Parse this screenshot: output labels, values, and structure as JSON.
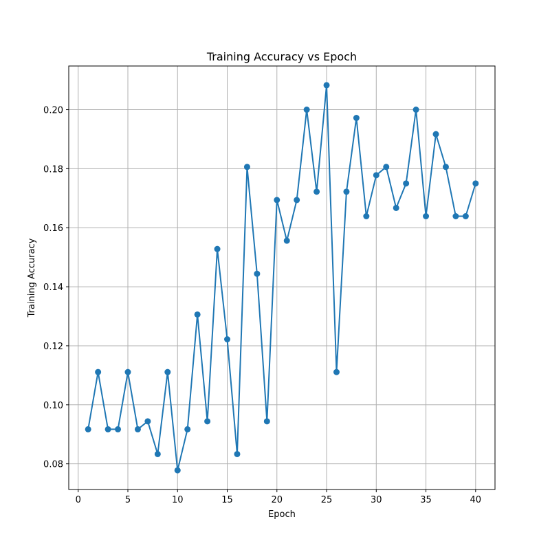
{
  "chart_data": {
    "type": "line",
    "title": "Training Accuracy vs Epoch",
    "xlabel": "Epoch",
    "ylabel": "Training Accuracy",
    "xlim": [
      -0.95,
      41.95
    ],
    "ylim": [
      0.0713,
      0.2148
    ],
    "xticks": [
      0,
      5,
      10,
      15,
      20,
      25,
      30,
      35,
      40
    ],
    "yticks": [
      0.08,
      0.1,
      0.12,
      0.14,
      0.16,
      0.18,
      0.2
    ],
    "ytick_labels": [
      "0.08",
      "0.10",
      "0.12",
      "0.14",
      "0.16",
      "0.18",
      "0.20"
    ],
    "grid": true,
    "series": [
      {
        "color": "#1f77b4",
        "marker": "circle",
        "x": [
          1,
          2,
          3,
          4,
          5,
          6,
          7,
          8,
          9,
          10,
          11,
          12,
          13,
          14,
          15,
          16,
          17,
          18,
          19,
          20,
          21,
          22,
          23,
          24,
          25,
          26,
          27,
          28,
          29,
          30,
          31,
          32,
          33,
          34,
          35,
          36,
          37,
          38,
          39,
          40
        ],
        "y": [
          0.0917,
          0.1111,
          0.0917,
          0.0917,
          0.1111,
          0.0917,
          0.0944,
          0.0833,
          0.1111,
          0.0778,
          0.0917,
          0.1306,
          0.0944,
          0.1528,
          0.1222,
          0.0833,
          0.1806,
          0.1444,
          0.0944,
          0.1694,
          0.1556,
          0.1694,
          0.2,
          0.1722,
          0.2083,
          0.1111,
          0.1722,
          0.1972,
          0.1639,
          0.1778,
          0.1806,
          0.1667,
          0.175,
          0.2,
          0.1639,
          0.1917,
          0.1806,
          0.1639,
          0.1639,
          0.175
        ]
      }
    ]
  }
}
